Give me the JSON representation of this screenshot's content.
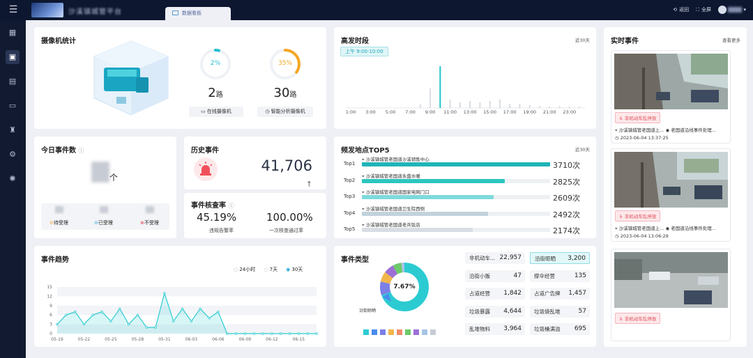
{
  "header": {
    "app_title": "沙溪镇城管平台",
    "tab_label": "数据看板",
    "back_label": "返回",
    "fullscreen_label": "全屏"
  },
  "sidebar": {
    "items": [
      "apps-icon",
      "dashboard-icon",
      "events-icon",
      "screen-icon",
      "patrol-icon",
      "settings-alt-icon",
      "gear-icon"
    ]
  },
  "camera": {
    "title": "摄像机统计",
    "online": {
      "percent": "2%",
      "count": "2",
      "unit": "路",
      "label": "在线摄像机",
      "fraction": 0.02
    },
    "smart": {
      "percent": "35%",
      "count": "30",
      "unit": "路",
      "label": "智能分析摄像机",
      "fraction": 0.35
    }
  },
  "today": {
    "title": "今日事件数",
    "unit": "个",
    "statuses": [
      "待受理",
      "已受理",
      "不受理"
    ]
  },
  "history": {
    "title": "历史事件",
    "value": "41,706"
  },
  "check_rate": {
    "title": "事件核查率",
    "left_value": "45.19%",
    "left_label": "违规告警率",
    "right_value": "100.00%",
    "right_label": "一次核查通过率"
  },
  "peak": {
    "title": "高发时段",
    "range": "近30天",
    "badge": "上午 9:00-10:00",
    "x_labels": [
      "1:00",
      "3:00",
      "5:00",
      "7:00",
      "9:00",
      "11:00",
      "13:00",
      "15:00",
      "17:00",
      "19:00",
      "21:00",
      "23:00"
    ]
  },
  "top5": {
    "title": "频发地点TOP5",
    "range": "近30天",
    "items": [
      {
        "rank": "Top1",
        "place": "沙溪镇城管老国道沙溪销售中心",
        "value": "3710次",
        "fraction": 1.0,
        "color": "#1fb5b8"
      },
      {
        "rank": "Top2",
        "place": "沙溪镇城管老国道永盛水暖",
        "value": "2825次",
        "fraction": 0.76,
        "color": "#2cc6c0"
      },
      {
        "rank": "Top3",
        "place": "沙溪镇城管老国道国家电网门口",
        "value": "2609次",
        "fraction": 0.7,
        "color": "#7fd9dc"
      },
      {
        "rank": "Top4",
        "place": "沙溪镇城管老国道卫生院西侧",
        "value": "2492次",
        "fraction": 0.67,
        "color": "#c2d2dc"
      },
      {
        "rank": "Top5",
        "place": "沙溪镇城管老国道老兵饭店",
        "value": "2174次",
        "fraction": 0.59,
        "color": "#d8dde5"
      }
    ]
  },
  "trend": {
    "title": "事件趋势",
    "options": [
      "24小时",
      "7天",
      "30天"
    ],
    "selected": "30天",
    "y_ticks": [
      "15",
      "12",
      "9",
      "6",
      "3",
      "0"
    ],
    "x_labels": [
      "05-19",
      "05-22",
      "05-25",
      "05-28",
      "05-31",
      "06-03",
      "06-06",
      "06-09",
      "06-12",
      "06-15"
    ]
  },
  "types": {
    "title": "事件类型",
    "center_label": "7.67%",
    "callout": "沿街晾晒",
    "cells": [
      {
        "label": "非机动车...",
        "value": "22,957"
      },
      {
        "label": "沿街晾晒",
        "value": "3,200"
      },
      {
        "label": "沿街小贩",
        "value": "47"
      },
      {
        "label": "撑伞经营",
        "value": "135"
      },
      {
        "label": "占道经营",
        "value": "1,842"
      },
      {
        "label": "占道广告牌",
        "value": "1,457"
      },
      {
        "label": "垃圾暴露",
        "value": "4,644"
      },
      {
        "label": "垃圾袋乱堆",
        "value": "57"
      },
      {
        "label": "乱堆物料",
        "value": "3,964"
      },
      {
        "label": "垃圾桶满溢",
        "value": "695"
      }
    ]
  },
  "realtime": {
    "title": "实时事件",
    "more": "查看更多",
    "events": [
      {
        "tag": "非机动车乱停放",
        "place": "沙溪镇城管老国道上...",
        "location": "老国道沿线事件处理...",
        "time": "2023-06-04 13:37:25"
      },
      {
        "tag": "非机动车乱停放",
        "place": "沙溪镇城管老国道上...",
        "location": "老国道沿线事件处理...",
        "time": "2023-06-04 13:06:29"
      },
      {
        "tag": "非机动车乱停放",
        "place": "",
        "location": "",
        "time": ""
      }
    ]
  }
}
